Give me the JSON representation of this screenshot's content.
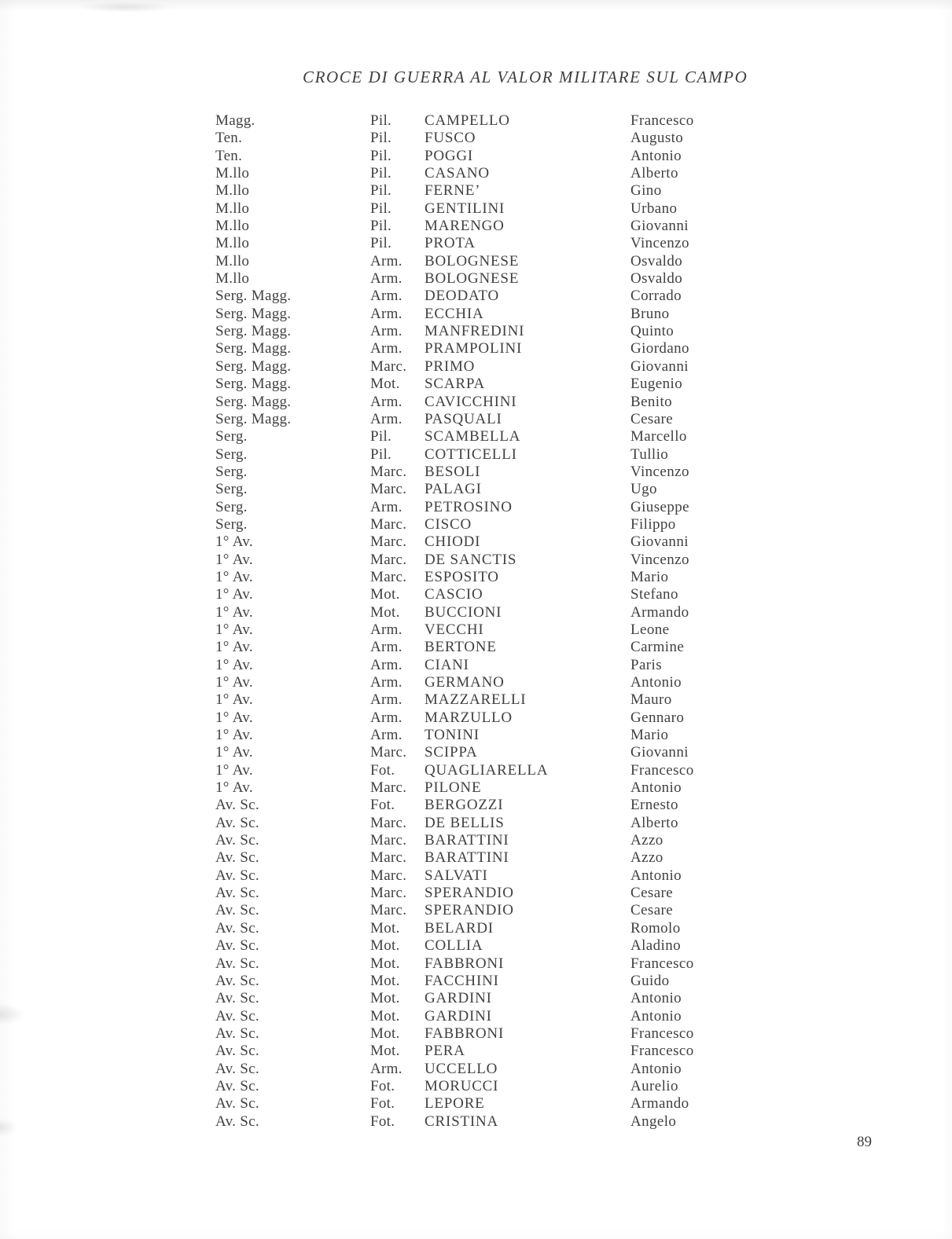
{
  "page": {
    "title": "CROCE DI GUERRA AL VALOR MILITARE SUL CAMPO",
    "page_number": "89"
  },
  "table": {
    "rows": [
      [
        "Magg.",
        "Pil.",
        "CAMPELLO",
        "Francesco"
      ],
      [
        "Ten.",
        "Pil.",
        "FUSCO",
        "Augusto"
      ],
      [
        "Ten.",
        "Pil.",
        "POGGI",
        "Antonio"
      ],
      [
        "M.llo",
        "Pil.",
        "CASANO",
        "Alberto"
      ],
      [
        "M.llo",
        "Pil.",
        "FERNE’",
        "Gino"
      ],
      [
        "M.llo",
        "Pil.",
        "GENTILINI",
        "Urbano"
      ],
      [
        "M.llo",
        "Pil.",
        "MARENGO",
        "Giovanni"
      ],
      [
        "M.llo",
        "Pil.",
        "PROTA",
        "Vincenzo"
      ],
      [
        "M.llo",
        "Arm.",
        "BOLOGNESE",
        "Osvaldo"
      ],
      [
        "M.llo",
        "Arm.",
        "BOLOGNESE",
        "Osvaldo"
      ],
      [
        "Serg. Magg.",
        "Arm.",
        "DEODATO",
        "Corrado"
      ],
      [
        "Serg. Magg.",
        "Arm.",
        "ECCHIA",
        "Bruno"
      ],
      [
        "Serg. Magg.",
        "Arm.",
        "MANFREDINI",
        "Quinto"
      ],
      [
        "Serg. Magg.",
        "Arm.",
        "PRAMPOLINI",
        "Giordano"
      ],
      [
        "Serg. Magg.",
        "Marc.",
        "PRIMO",
        "Giovanni"
      ],
      [
        "Serg. Magg.",
        "Mot.",
        "SCARPA",
        "Eugenio"
      ],
      [
        "Serg. Magg.",
        "Arm.",
        "CAVICCHINI",
        "Benito"
      ],
      [
        "Serg. Magg.",
        "Arm.",
        "PASQUALI",
        "Cesare"
      ],
      [
        "Serg.",
        "Pil.",
        "SCAMBELLA",
        "Marcello"
      ],
      [
        "Serg.",
        "Pil.",
        "COTTICELLI",
        "Tullio"
      ],
      [
        "Serg.",
        "Marc.",
        "BESOLI",
        "Vincenzo"
      ],
      [
        "Serg.",
        "Marc.",
        "PALAGI",
        "Ugo"
      ],
      [
        "Serg.",
        "Arm.",
        "PETROSINO",
        "Giuseppe"
      ],
      [
        "Serg.",
        "Marc.",
        "CISCO",
        "Filippo"
      ],
      [
        "1° Av.",
        "Marc.",
        "CHIODI",
        "Giovanni"
      ],
      [
        "1° Av.",
        "Marc.",
        "DE SANCTIS",
        "Vincenzo"
      ],
      [
        "1° Av.",
        "Marc.",
        "ESPOSITO",
        "Mario"
      ],
      [
        "1° Av.",
        "Mot.",
        "CASCIO",
        "Stefano"
      ],
      [
        "1° Av.",
        "Mot.",
        "BUCCIONI",
        "Armando"
      ],
      [
        "1° Av.",
        "Arm.",
        "VECCHI",
        "Leone"
      ],
      [
        "1° Av.",
        "Arm.",
        "BERTONE",
        "Carmine"
      ],
      [
        "1° Av.",
        "Arm.",
        "CIANI",
        "Paris"
      ],
      [
        "1° Av.",
        "Arm.",
        "GERMANO",
        "Antonio"
      ],
      [
        "1° Av.",
        "Arm.",
        "MAZZARELLI",
        "Mauro"
      ],
      [
        "1° Av.",
        "Arm.",
        "MARZULLO",
        "Gennaro"
      ],
      [
        "1° Av.",
        "Arm.",
        "TONINI",
        "Mario"
      ],
      [
        "1° Av.",
        "Marc.",
        "SCIPPA",
        "Giovanni"
      ],
      [
        "1° Av.",
        "Fot.",
        "QUAGLIARELLA",
        "Francesco"
      ],
      [
        "1° Av.",
        "Marc.",
        "PILONE",
        "Antonio"
      ],
      [
        "Av. Sc.",
        "Fot.",
        "BERGOZZI",
        "Ernesto"
      ],
      [
        "Av. Sc.",
        "Marc.",
        "DE BELLIS",
        "Alberto"
      ],
      [
        "Av. Sc.",
        "Marc.",
        "BARATTINI",
        "Azzo"
      ],
      [
        "Av. Sc.",
        "Marc.",
        "BARATTINI",
        "Azzo"
      ],
      [
        "Av. Sc.",
        "Marc.",
        "SALVATI",
        "Antonio"
      ],
      [
        "Av. Sc.",
        "Marc.",
        "SPERANDIO",
        "Cesare"
      ],
      [
        "Av. Sc.",
        "Marc.",
        "SPERANDIO",
        "Cesare"
      ],
      [
        "Av. Sc.",
        "Mot.",
        "BELARDI",
        "Romolo"
      ],
      [
        "Av. Sc.",
        "Mot.",
        "COLLIA",
        "Aladino"
      ],
      [
        "Av. Sc.",
        "Mot.",
        "FABBRONI",
        "Francesco"
      ],
      [
        "Av. Sc.",
        "Mot.",
        "FACCHINI",
        "Guido"
      ],
      [
        "Av. Sc.",
        "Mot.",
        "GARDINI",
        "Antonio"
      ],
      [
        "Av. Sc.",
        "Mot.",
        "GARDINI",
        "Antonio"
      ],
      [
        "Av. Sc.",
        "Mot.",
        "FABBRONI",
        "Francesco"
      ],
      [
        "Av. Sc.",
        "Mot.",
        "PERA",
        "Francesco"
      ],
      [
        "Av. Sc.",
        "Arm.",
        "UCCELLO",
        "Antonio"
      ],
      [
        "Av. Sc.",
        "Fot.",
        "MORUCCI",
        "Aurelio"
      ],
      [
        "Av. Sc.",
        "Fot.",
        "LEPORE",
        "Armando"
      ],
      [
        "Av. Sc.",
        "Fot.",
        "CRISTINA",
        "Angelo"
      ]
    ]
  }
}
